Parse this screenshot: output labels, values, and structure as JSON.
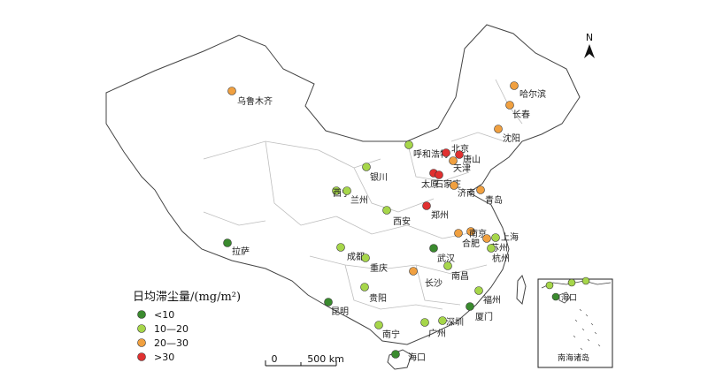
{
  "legend": {
    "title": "日均滞尘量/(mg/m²)",
    "classes": [
      {
        "label": "<10",
        "color": "#3a8a2e"
      },
      {
        "label": "10—20",
        "color": "#a6d64a"
      },
      {
        "label": "20—30",
        "color": "#f0a040"
      },
      {
        "label": ">30",
        "color": "#e03030"
      }
    ]
  },
  "north_arrow": {
    "label": "N",
    "icon": "north-arrow-icon"
  },
  "scale_bar": {
    "start": "0",
    "end": "500 km"
  },
  "inset": {
    "label": "南海诸岛",
    "city": "海口"
  },
  "cities": [
    {
      "name": "乌鲁木齐",
      "class": 2
    },
    {
      "name": "哈尔滨",
      "class": 2
    },
    {
      "name": "长春",
      "class": 2
    },
    {
      "name": "沈阳",
      "class": 2
    },
    {
      "name": "呼和浩特",
      "class": 1
    },
    {
      "name": "北京",
      "class": 3
    },
    {
      "name": "唐山",
      "class": 3
    },
    {
      "name": "天津",
      "class": 2
    },
    {
      "name": "银川",
      "class": 1
    },
    {
      "name": "太原",
      "class": 3
    },
    {
      "name": "石家庄",
      "class": 3
    },
    {
      "name": "济南",
      "class": 2
    },
    {
      "name": "西宁",
      "class": 1
    },
    {
      "name": "兰州",
      "class": 1
    },
    {
      "name": "西安",
      "class": 1
    },
    {
      "name": "郑州",
      "class": 3
    },
    {
      "name": "青岛",
      "class": 2
    },
    {
      "name": "拉萨",
      "class": 0
    },
    {
      "name": "南京",
      "class": 2
    },
    {
      "name": "合肥",
      "class": 2
    },
    {
      "name": "上海",
      "class": 1
    },
    {
      "name": "苏州",
      "class": 2
    },
    {
      "name": "杭州",
      "class": 1
    },
    {
      "name": "成都",
      "class": 1
    },
    {
      "name": "武汉",
      "class": 0
    },
    {
      "name": "重庆",
      "class": 1
    },
    {
      "name": "南昌",
      "class": 1
    },
    {
      "name": "长沙",
      "class": 2
    },
    {
      "name": "贵阳",
      "class": 1
    },
    {
      "name": "福州",
      "class": 1
    },
    {
      "name": "昆明",
      "class": 0
    },
    {
      "name": "厦门",
      "class": 0
    },
    {
      "name": "南宁",
      "class": 1
    },
    {
      "name": "广州",
      "class": 1
    },
    {
      "name": "深圳",
      "class": 1
    },
    {
      "name": "海口",
      "class": 0
    }
  ]
}
